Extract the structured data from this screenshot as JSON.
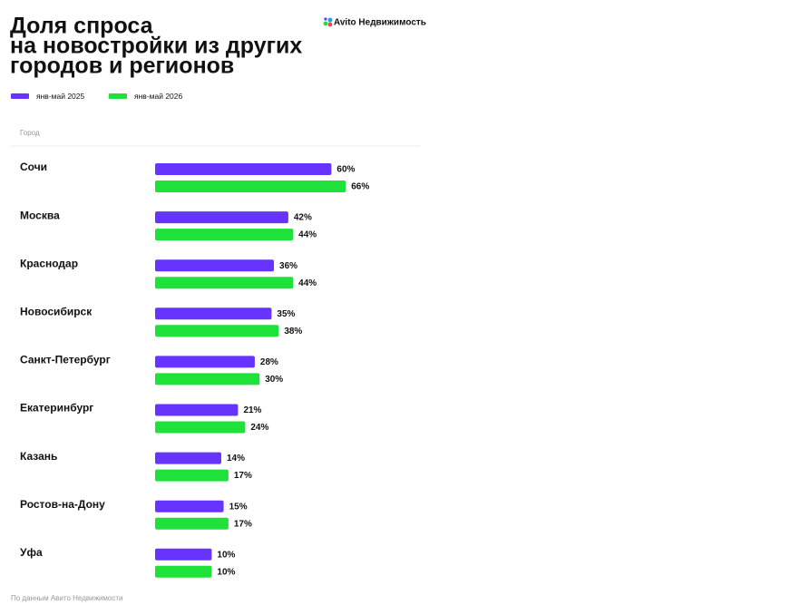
{
  "chart_data": {
    "type": "bar",
    "orientation": "horizontal",
    "title": [
      "Доля спроса",
      "на новостройки из других",
      "городов и регионов"
    ],
    "brand": "Avito Недвижимость",
    "column_header": "Город",
    "source": "По данным Авито Недвижимости",
    "categories": [
      "Сочи",
      "Москва",
      "Краснодар",
      "Новосибирск",
      "Санкт-Петербург",
      "Екатеринбург",
      "Казань",
      "Ростов-на-Дону",
      "Уфа"
    ],
    "series": [
      {
        "name": "янв-май 2025",
        "color": "#6633ff",
        "values": [
          60,
          42,
          36,
          35,
          28,
          21,
          14,
          15,
          10
        ],
        "value_labels": [
          "60%",
          "42%",
          "36%",
          "35%",
          "28%",
          "21%",
          "14%",
          "15%",
          "10%"
        ]
      },
      {
        "name": "янв-май 2026",
        "color": "#1ee13a",
        "values": [
          66,
          44,
          44,
          38,
          30,
          24,
          17,
          17,
          10
        ],
        "value_labels": [
          "66%",
          "44%",
          "44%",
          "38%",
          "30%",
          "24%",
          "17%",
          "17%",
          "10%"
        ]
      }
    ]
  }
}
